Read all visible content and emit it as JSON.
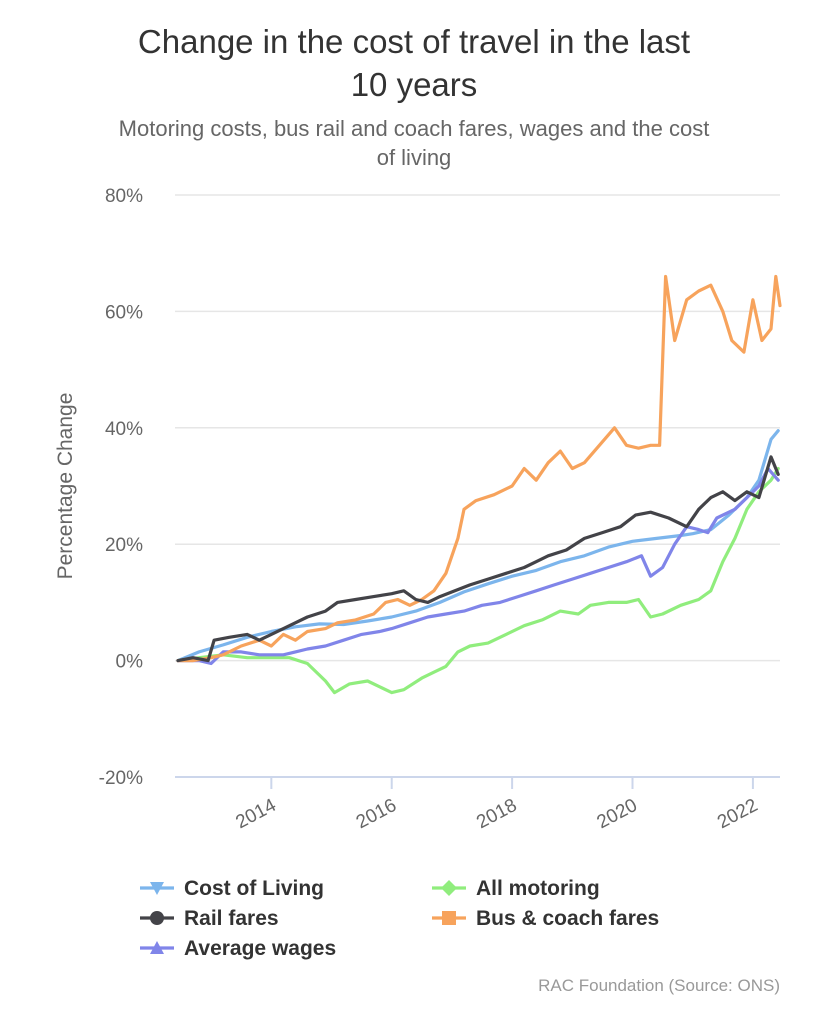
{
  "chart_data": {
    "type": "line",
    "title": "Change in the cost of travel in the last 10 years",
    "title_lines": [
      "Change in the cost of travel in the last",
      "10 years"
    ],
    "subtitle": "Motoring costs, bus rail and coach fares, wages and the cost of living",
    "subtitle_lines": [
      "Motoring costs, bus rail and coach fares, wages and the cost",
      "of living"
    ],
    "ylabel": "Percentage Change",
    "xlabel": "",
    "ylim": [
      -20,
      80
    ],
    "xlim": [
      2012.4,
      2022.45
    ],
    "y_ticks": [
      "-20%",
      "0%",
      "20%",
      "40%",
      "60%",
      "80%"
    ],
    "y_tick_values": [
      -20,
      0,
      20,
      40,
      60,
      80
    ],
    "x_ticks": [
      "2014",
      "2016",
      "2018",
      "2020",
      "2022"
    ],
    "x_tick_values": [
      2014,
      2016,
      2018,
      2020,
      2022
    ],
    "grid": true,
    "legend_position": "bottom",
    "credits": "RAC Foundation (Source: ONS)",
    "series": [
      {
        "name": "Cost of Living",
        "color": "#7cb5ec",
        "marker": "triangle-down",
        "points": [
          [
            2012.45,
            0
          ],
          [
            2012.8,
            1.5
          ],
          [
            2013.2,
            2.7
          ],
          [
            2013.6,
            4
          ],
          [
            2014,
            5
          ],
          [
            2014.4,
            5.8
          ],
          [
            2014.8,
            6.3
          ],
          [
            2015.2,
            6.2
          ],
          [
            2015.6,
            6.8
          ],
          [
            2016,
            7.5
          ],
          [
            2016.4,
            8.5
          ],
          [
            2016.8,
            10
          ],
          [
            2017.2,
            11.8
          ],
          [
            2017.6,
            13.2
          ],
          [
            2018,
            14.5
          ],
          [
            2018.4,
            15.5
          ],
          [
            2018.8,
            17
          ],
          [
            2019.2,
            18
          ],
          [
            2019.6,
            19.5
          ],
          [
            2020,
            20.5
          ],
          [
            2020.4,
            21
          ],
          [
            2020.8,
            21.5
          ],
          [
            2021,
            21.8
          ],
          [
            2021.3,
            22.5
          ],
          [
            2021.6,
            25
          ],
          [
            2021.9,
            28
          ],
          [
            2022.1,
            31
          ],
          [
            2022.3,
            38
          ],
          [
            2022.42,
            39.5
          ]
        ]
      },
      {
        "name": "All motoring",
        "color": "#90ed7d",
        "marker": "diamond",
        "points": [
          [
            2012.45,
            0
          ],
          [
            2012.8,
            0.5
          ],
          [
            2013.2,
            1
          ],
          [
            2013.6,
            0.5
          ],
          [
            2014,
            0.5
          ],
          [
            2014.3,
            0.5
          ],
          [
            2014.6,
            -0.5
          ],
          [
            2014.9,
            -3.5
          ],
          [
            2015.05,
            -5.5
          ],
          [
            2015.3,
            -4
          ],
          [
            2015.6,
            -3.5
          ],
          [
            2015.8,
            -4.5
          ],
          [
            2016,
            -5.5
          ],
          [
            2016.2,
            -5
          ],
          [
            2016.5,
            -3
          ],
          [
            2016.7,
            -2
          ],
          [
            2016.9,
            -1
          ],
          [
            2017.1,
            1.5
          ],
          [
            2017.3,
            2.5
          ],
          [
            2017.6,
            3
          ],
          [
            2017.9,
            4.5
          ],
          [
            2018.2,
            6
          ],
          [
            2018.5,
            7
          ],
          [
            2018.8,
            8.5
          ],
          [
            2019.1,
            8
          ],
          [
            2019.3,
            9.5
          ],
          [
            2019.6,
            10
          ],
          [
            2019.9,
            10
          ],
          [
            2020.1,
            10.5
          ],
          [
            2020.3,
            7.5
          ],
          [
            2020.5,
            8
          ],
          [
            2020.8,
            9.5
          ],
          [
            2021.1,
            10.5
          ],
          [
            2021.3,
            12
          ],
          [
            2021.5,
            17
          ],
          [
            2021.7,
            21
          ],
          [
            2021.9,
            26
          ],
          [
            2022.1,
            29
          ],
          [
            2022.3,
            31
          ],
          [
            2022.42,
            33
          ]
        ]
      },
      {
        "name": "Rail fares",
        "color": "#434348",
        "marker": "circle",
        "points": [
          [
            2012.45,
            0
          ],
          [
            2012.7,
            0.5
          ],
          [
            2012.95,
            0
          ],
          [
            2013.05,
            3.5
          ],
          [
            2013.3,
            4
          ],
          [
            2013.6,
            4.5
          ],
          [
            2013.8,
            3.5
          ],
          [
            2014,
            4.5
          ],
          [
            2014.3,
            6
          ],
          [
            2014.6,
            7.5
          ],
          [
            2014.9,
            8.5
          ],
          [
            2015.1,
            10
          ],
          [
            2015.4,
            10.5
          ],
          [
            2015.7,
            11
          ],
          [
            2016,
            11.5
          ],
          [
            2016.2,
            12
          ],
          [
            2016.4,
            10.5
          ],
          [
            2016.6,
            10
          ],
          [
            2016.8,
            11
          ],
          [
            2017.05,
            12
          ],
          [
            2017.3,
            13
          ],
          [
            2017.6,
            14
          ],
          [
            2017.9,
            15
          ],
          [
            2018.2,
            16
          ],
          [
            2018.4,
            17
          ],
          [
            2018.6,
            18
          ],
          [
            2018.9,
            19
          ],
          [
            2019.2,
            21
          ],
          [
            2019.5,
            22
          ],
          [
            2019.8,
            23
          ],
          [
            2020.05,
            25
          ],
          [
            2020.3,
            25.5
          ],
          [
            2020.6,
            24.5
          ],
          [
            2020.9,
            23
          ],
          [
            2021.1,
            26
          ],
          [
            2021.3,
            28
          ],
          [
            2021.5,
            29
          ],
          [
            2021.7,
            27.5
          ],
          [
            2021.9,
            29
          ],
          [
            2022.1,
            28
          ],
          [
            2022.3,
            35
          ],
          [
            2022.42,
            32
          ]
        ]
      },
      {
        "name": "Bus & coach fares",
        "color": "#f7a35c",
        "marker": "square",
        "points": [
          [
            2012.45,
            0
          ],
          [
            2012.7,
            0
          ],
          [
            2013,
            0.5
          ],
          [
            2013.2,
            1
          ],
          [
            2013.5,
            2.5
          ],
          [
            2013.8,
            3.5
          ],
          [
            2014,
            2.5
          ],
          [
            2014.2,
            4.5
          ],
          [
            2014.4,
            3.5
          ],
          [
            2014.6,
            5
          ],
          [
            2014.9,
            5.5
          ],
          [
            2015.1,
            6.5
          ],
          [
            2015.4,
            7
          ],
          [
            2015.7,
            8
          ],
          [
            2015.9,
            10
          ],
          [
            2016.1,
            10.5
          ],
          [
            2016.3,
            9.5
          ],
          [
            2016.5,
            10.5
          ],
          [
            2016.7,
            12
          ],
          [
            2016.9,
            15
          ],
          [
            2017.1,
            21
          ],
          [
            2017.2,
            26
          ],
          [
            2017.4,
            27.5
          ],
          [
            2017.7,
            28.5
          ],
          [
            2018,
            30
          ],
          [
            2018.2,
            33
          ],
          [
            2018.4,
            31
          ],
          [
            2018.6,
            34
          ],
          [
            2018.8,
            36
          ],
          [
            2019,
            33
          ],
          [
            2019.2,
            34
          ],
          [
            2019.45,
            37
          ],
          [
            2019.7,
            40
          ],
          [
            2019.9,
            37
          ],
          [
            2020.1,
            36.5
          ],
          [
            2020.3,
            37
          ],
          [
            2020.45,
            37
          ],
          [
            2020.55,
            66
          ],
          [
            2020.7,
            55
          ],
          [
            2020.9,
            62
          ],
          [
            2021.1,
            63.5
          ],
          [
            2021.3,
            64.5
          ],
          [
            2021.5,
            60
          ],
          [
            2021.65,
            55
          ],
          [
            2021.85,
            53
          ],
          [
            2022,
            62
          ],
          [
            2022.15,
            55
          ],
          [
            2022.3,
            57
          ],
          [
            2022.38,
            66
          ],
          [
            2022.45,
            61
          ]
        ]
      },
      {
        "name": "Average wages",
        "color": "#8085e9",
        "marker": "triangle",
        "points": [
          [
            2012.45,
            0
          ],
          [
            2012.8,
            0
          ],
          [
            2013,
            -0.5
          ],
          [
            2013.2,
            1.5
          ],
          [
            2013.5,
            1.5
          ],
          [
            2013.8,
            1
          ],
          [
            2014,
            1
          ],
          [
            2014.2,
            1
          ],
          [
            2014.4,
            1.5
          ],
          [
            2014.6,
            2
          ],
          [
            2014.9,
            2.5
          ],
          [
            2015.2,
            3.5
          ],
          [
            2015.5,
            4.5
          ],
          [
            2015.8,
            5
          ],
          [
            2016,
            5.5
          ],
          [
            2016.3,
            6.5
          ],
          [
            2016.6,
            7.5
          ],
          [
            2016.9,
            8
          ],
          [
            2017.2,
            8.5
          ],
          [
            2017.5,
            9.5
          ],
          [
            2017.8,
            10
          ],
          [
            2018.1,
            11
          ],
          [
            2018.4,
            12
          ],
          [
            2018.7,
            13
          ],
          [
            2019,
            14
          ],
          [
            2019.3,
            15
          ],
          [
            2019.6,
            16
          ],
          [
            2019.9,
            17
          ],
          [
            2020.15,
            18
          ],
          [
            2020.3,
            14.5
          ],
          [
            2020.5,
            16
          ],
          [
            2020.7,
            20
          ],
          [
            2020.9,
            23
          ],
          [
            2021.1,
            22.5
          ],
          [
            2021.25,
            22
          ],
          [
            2021.4,
            24.5
          ],
          [
            2021.7,
            26
          ],
          [
            2021.9,
            28
          ],
          [
            2022.1,
            30
          ],
          [
            2022.25,
            33
          ],
          [
            2022.42,
            31
          ]
        ]
      }
    ],
    "legend_order": [
      "Cost of Living",
      "All motoring",
      "Rail fares",
      "Bus & coach fares",
      "Average wages"
    ]
  }
}
